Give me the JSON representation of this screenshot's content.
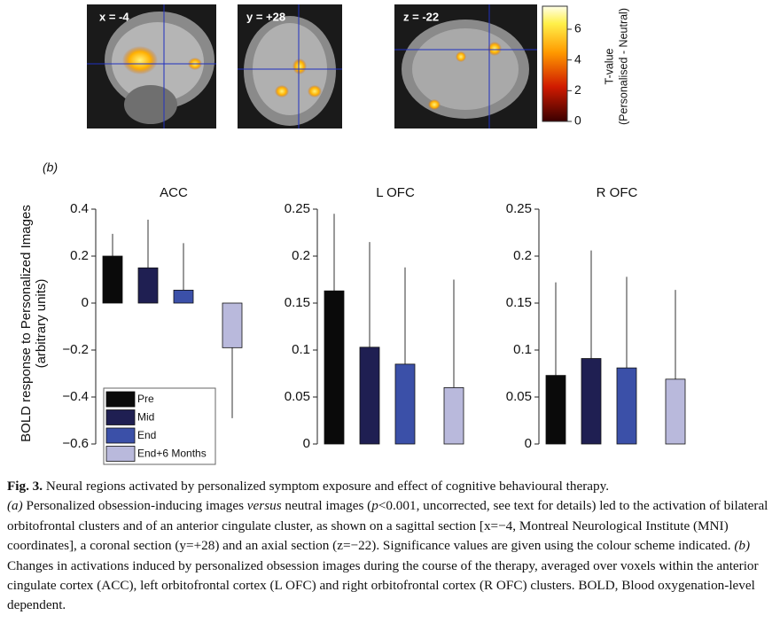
{
  "panel_a": {
    "slices": [
      "x = -4",
      "y = +28",
      "z = -22"
    ]
  },
  "colorbar": {
    "label_lines": [
      "T-value",
      "(Personalised - Neutral)"
    ],
    "lim": [
      0,
      7.5
    ],
    "ticks": [
      0,
      2,
      4,
      6
    ]
  },
  "panel_b_label": "(b)",
  "chart_data": [
    {
      "type": "bar",
      "title": "ACC",
      "ylabel_lines": [
        "BOLD response to Personalized Images",
        "(arbitrary units)"
      ],
      "categories": [
        "Pre",
        "Mid",
        "End",
        "End+6 Months"
      ],
      "colors": [
        "#0a0a0a",
        "#1f1f52",
        "#3b50a8",
        "#b9b9dc"
      ],
      "values": [
        0.2,
        0.15,
        0.055,
        -0.19
      ],
      "errors": [
        0.095,
        0.205,
        0.2,
        0.3
      ],
      "ylim": [
        -0.6,
        0.4
      ],
      "yticks": [
        {
          "value": -0.6,
          "label": "−0.6"
        },
        {
          "value": -0.4,
          "label": "−0.4"
        },
        {
          "value": -0.2,
          "label": "−0.2"
        },
        0,
        0.2,
        0.4
      ],
      "legend": true
    },
    {
      "type": "bar",
      "title": "L OFC",
      "categories": [
        "Pre",
        "Mid",
        "End",
        "End+6 Months"
      ],
      "colors": [
        "#0a0a0a",
        "#1f1f52",
        "#3b50a8",
        "#b9b9dc"
      ],
      "values": [
        0.163,
        0.103,
        0.085,
        0.06
      ],
      "errors": [
        0.082,
        0.112,
        0.103,
        0.115
      ],
      "ylim": [
        0,
        0.25
      ],
      "yticks": [
        0,
        0.05,
        0.1,
        0.15,
        0.2,
        0.25
      ],
      "legend": false
    },
    {
      "type": "bar",
      "title": "R OFC",
      "categories": [
        "Pre",
        "Mid",
        "End",
        "End+6 Months"
      ],
      "colors": [
        "#0a0a0a",
        "#1f1f52",
        "#3b50a8",
        "#b9b9dc"
      ],
      "values": [
        0.073,
        0.091,
        0.081,
        0.069
      ],
      "errors": [
        0.099,
        0.115,
        0.097,
        0.095
      ],
      "ylim": [
        0,
        0.25
      ],
      "yticks": [
        0,
        0.05,
        0.1,
        0.15,
        0.2,
        0.25
      ],
      "legend": false
    }
  ],
  "caption": {
    "label": "Fig. 3.",
    "title": "Neural regions activated by personalized symptom exposure and effect of cognitive behavioural therapy.",
    "body": [
      {
        "text": "(a)",
        "style": "italic"
      },
      {
        "text": " Personalized obsession-inducing images "
      },
      {
        "text": "versus",
        "style": "italic"
      },
      {
        "text": " neutral images ("
      },
      {
        "text": "p",
        "style": "italic"
      },
      {
        "text": "<0.001, uncorrected, see text for details) led to the activation of bilateral orbitofrontal clusters and of an anterior cingulate cluster, as shown on a sagittal section [x=−4, Montreal Neurological Institute (MNI) coordinates], a coronal section (y=+28) and an axial section (z=−22). Significance values are given using the colour scheme indicated. "
      },
      {
        "text": "(b)",
        "style": "italic"
      },
      {
        "text": " Changes in activations induced by personalized obsession images during the course of the therapy, averaged over voxels within the anterior cingulate cortex (ACC), left orbitofrontal cortex (L OFC) and right orbitofrontal cortex (R OFC) clusters. BOLD, Blood oxygenation-level dependent."
      }
    ]
  }
}
